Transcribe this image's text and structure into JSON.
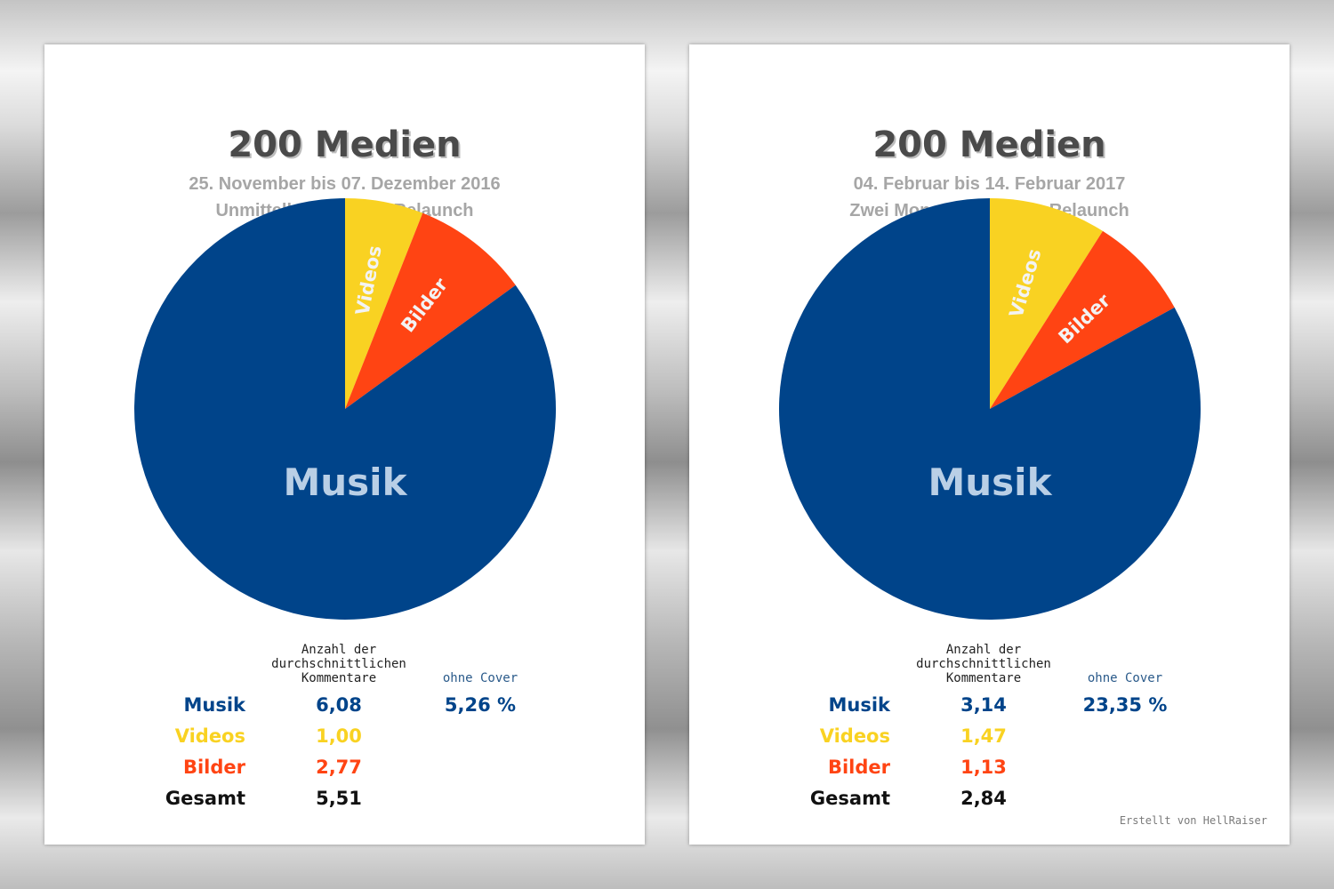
{
  "colors": {
    "musik": "#00448a",
    "videos": "#f9d222",
    "bilder": "#ff4413",
    "gesamt": "#111111",
    "pie_label_musik": "#b9cfe6",
    "pie_label_small": "#f3f3f3"
  },
  "chart_data": [
    {
      "type": "pie",
      "title": "200 Medien",
      "subtitle": [
        "25. November bis 07. Dezember 2016",
        "Unmittelbar vor dem Relaunch"
      ],
      "slices": [
        {
          "label": "Videos",
          "percent": 6
        },
        {
          "label": "Bilder",
          "percent": 9
        },
        {
          "label": "Musik",
          "percent": 85
        }
      ],
      "table": {
        "header": [
          "Anzahl der",
          "durchschnittlichen",
          "Kommentare"
        ],
        "extra_header": "ohne Cover",
        "rows": [
          {
            "label": "Musik",
            "value": "6,08",
            "extra": "5,26 %"
          },
          {
            "label": "Videos",
            "value": "1,00",
            "extra": ""
          },
          {
            "label": "Bilder",
            "value": "2,77",
            "extra": ""
          },
          {
            "label": "Gesamt",
            "value": "5,51",
            "extra": ""
          }
        ]
      },
      "credit": ""
    },
    {
      "type": "pie",
      "title": "200 Medien",
      "subtitle": [
        "04. Februar bis 14. Februar 2017",
        "Zwei Monate nach dem Relaunch"
      ],
      "slices": [
        {
          "label": "Videos",
          "percent": 9
        },
        {
          "label": "Bilder",
          "percent": 8
        },
        {
          "label": "Musik",
          "percent": 83
        }
      ],
      "table": {
        "header": [
          "Anzahl der",
          "durchschnittlichen",
          "Kommentare"
        ],
        "extra_header": "ohne Cover",
        "rows": [
          {
            "label": "Musik",
            "value": "3,14",
            "extra": "23,35 %"
          },
          {
            "label": "Videos",
            "value": "1,47",
            "extra": ""
          },
          {
            "label": "Bilder",
            "value": "1,13",
            "extra": ""
          },
          {
            "label": "Gesamt",
            "value": "2,84",
            "extra": ""
          }
        ]
      },
      "credit": "Erstellt von HellRaiser"
    }
  ]
}
